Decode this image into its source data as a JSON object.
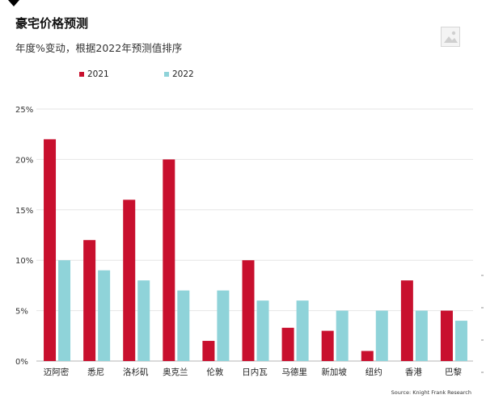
{
  "header": {
    "title": "豪宅价格预测",
    "subtitle": "年度%变动，根据2022年预测值排序"
  },
  "icons": {
    "image_placeholder": "image-icon"
  },
  "colors": {
    "s2021": "#c8102e",
    "s2022": "#8fd3d9",
    "grid": "#e6e6e6",
    "axis": "#b5b5b5"
  },
  "chart_data": {
    "type": "bar",
    "categories": [
      "迈阿密",
      "悉尼",
      "洛杉矶",
      "奥克兰",
      "伦敦",
      "日内瓦",
      "马德里",
      "新加坡",
      "纽约",
      "香港",
      "巴黎"
    ],
    "series": [
      {
        "name": "2021",
        "values": [
          22,
          12,
          16,
          20,
          2,
          10,
          3.3,
          3,
          1,
          8,
          5
        ]
      },
      {
        "name": "2022",
        "values": [
          10,
          9,
          8,
          7,
          7,
          6,
          6,
          5,
          5,
          5,
          4
        ]
      }
    ],
    "yticks": [
      "0%",
      "5%",
      "10%",
      "15%",
      "20%",
      "25%"
    ],
    "ylim": [
      0,
      25
    ],
    "title": "豪宅价格预测",
    "subtitle": "年度%变动，根据2022年预测值排序",
    "legend_position": "top-left",
    "grid": true
  },
  "footer": {
    "source": "Source: Knight Frank Research"
  }
}
